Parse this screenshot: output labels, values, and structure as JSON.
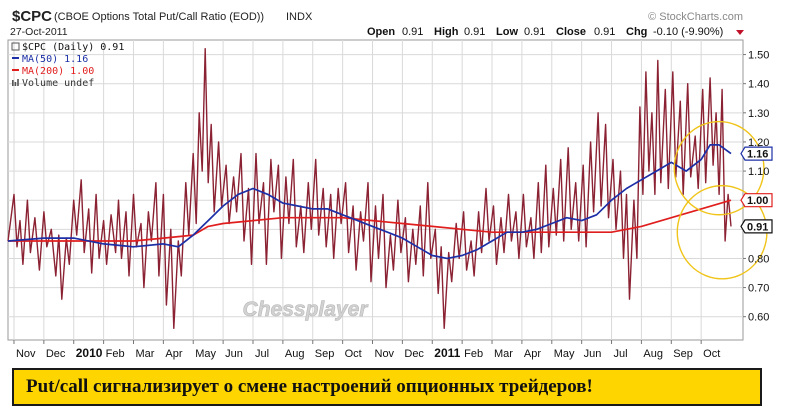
{
  "header": {
    "symbol": "$CPC",
    "description": "(CBOE Options Total Put/Call Ratio (EOD))",
    "exchange": "INDX",
    "date": "27-Oct-2011",
    "brand": "© StockCharts.com",
    "ohlc": {
      "open_label": "Open",
      "open": "0.91",
      "high_label": "High",
      "high": "0.91",
      "low_label": "Low",
      "low": "0.91",
      "close_label": "Close",
      "close": "0.91",
      "chg_label": "Chg",
      "chg": "-0.10 (-9.90%)"
    }
  },
  "legend": {
    "price": "$CPC (Daily) 0.91",
    "ma50": "MA(50) 1.16",
    "ma200": "MA(200) 1.00",
    "volume": "Volume undef"
  },
  "colors": {
    "price": "#8b2233",
    "ma50": "#1c2fa6",
    "ma200": "#e01e1e",
    "grid": "#d9d9d9",
    "circle": "#f0c419",
    "banner": "#ffd500"
  },
  "watermark": "Chessplayer",
  "banner_text": "Put/call сигнализирует о смене настроений опционных трейдеров!",
  "chart_data": {
    "type": "line",
    "x_ticks": [
      {
        "label": "Nov",
        "month": 0
      },
      {
        "label": "Dec",
        "month": 1
      },
      {
        "label": "2010",
        "month": 2,
        "bold": true
      },
      {
        "label": "Feb",
        "month": 3
      },
      {
        "label": "Mar",
        "month": 4
      },
      {
        "label": "Apr",
        "month": 5
      },
      {
        "label": "May",
        "month": 6
      },
      {
        "label": "Jun",
        "month": 7
      },
      {
        "label": "Jul",
        "month": 8
      },
      {
        "label": "Aug",
        "month": 9
      },
      {
        "label": "Sep",
        "month": 10
      },
      {
        "label": "Oct",
        "month": 11
      },
      {
        "label": "Nov",
        "month": 12
      },
      {
        "label": "Dec",
        "month": 13
      },
      {
        "label": "2011",
        "month": 14,
        "bold": true
      },
      {
        "label": "Feb",
        "month": 15
      },
      {
        "label": "Mar",
        "month": 16
      },
      {
        "label": "Apr",
        "month": 17
      },
      {
        "label": "May",
        "month": 18
      },
      {
        "label": "Jun",
        "month": 19
      },
      {
        "label": "Jul",
        "month": 20
      },
      {
        "label": "Aug",
        "month": 21
      },
      {
        "label": "Sep",
        "month": 22
      },
      {
        "label": "Oct",
        "month": 23
      }
    ],
    "y_ticks": [
      0.6,
      0.7,
      0.8,
      0.9,
      1.0,
      1.1,
      1.2,
      1.3,
      1.4,
      1.5
    ],
    "ylim": [
      0.52,
      1.55
    ],
    "xlim": [
      -0.2,
      24.4
    ],
    "price_labels": [
      {
        "text": "1.16",
        "value": 1.16,
        "color": "#1c2fa6"
      },
      {
        "text": "1.00",
        "value": 1.0,
        "color": "#e01e1e"
      },
      {
        "text": "0.91",
        "value": 0.91,
        "color": "#111111"
      }
    ],
    "annotations": [
      {
        "type": "circle",
        "cx": 23.6,
        "cy": 1.11,
        "r_months": 1.5,
        "r_value": 0.16
      },
      {
        "type": "circle",
        "cx": 23.7,
        "cy": 0.89,
        "r_months": 1.5,
        "r_value": 0.16
      }
    ],
    "series": [
      {
        "name": "$CPC (Daily)",
        "role": "price",
        "points": [
          [
            -0.2,
            0.86
          ],
          [
            0.0,
            1.02
          ],
          [
            0.1,
            0.84
          ],
          [
            0.2,
            0.93
          ],
          [
            0.3,
            0.78
          ],
          [
            0.45,
            1.0
          ],
          [
            0.55,
            0.82
          ],
          [
            0.7,
            0.94
          ],
          [
            0.85,
            0.76
          ],
          [
            1.0,
            0.96
          ],
          [
            1.1,
            0.84
          ],
          [
            1.25,
            0.9
          ],
          [
            1.4,
            0.74
          ],
          [
            1.5,
            0.88
          ],
          [
            1.6,
            0.66
          ],
          [
            1.75,
            0.87
          ],
          [
            1.85,
            0.78
          ],
          [
            2.0,
            1.0
          ],
          [
            2.1,
            0.88
          ],
          [
            2.25,
            1.07
          ],
          [
            2.35,
            0.82
          ],
          [
            2.5,
            0.97
          ],
          [
            2.6,
            0.75
          ],
          [
            2.75,
            1.02
          ],
          [
            2.85,
            0.8
          ],
          [
            3.0,
            0.93
          ],
          [
            3.1,
            0.78
          ],
          [
            3.25,
            0.95
          ],
          [
            3.4,
            0.82
          ],
          [
            3.5,
            1.0
          ],
          [
            3.6,
            0.8
          ],
          [
            3.75,
            0.96
          ],
          [
            3.85,
            0.74
          ],
          [
            4.0,
            1.02
          ],
          [
            4.1,
            0.84
          ],
          [
            4.25,
            0.92
          ],
          [
            4.35,
            0.7
          ],
          [
            4.5,
            0.96
          ],
          [
            4.6,
            0.86
          ],
          [
            4.75,
            1.06
          ],
          [
            4.85,
            0.74
          ],
          [
            5.0,
            1.02
          ],
          [
            5.1,
            0.64
          ],
          [
            5.25,
            0.9
          ],
          [
            5.35,
            0.56
          ],
          [
            5.5,
            0.86
          ],
          [
            5.6,
            0.74
          ],
          [
            5.75,
            1.06
          ],
          [
            5.85,
            0.88
          ],
          [
            6.0,
            1.16
          ],
          [
            6.1,
            0.92
          ],
          [
            6.2,
            1.3
          ],
          [
            6.3,
            1.1
          ],
          [
            6.4,
            1.52
          ],
          [
            6.5,
            1.06
          ],
          [
            6.6,
            1.26
          ],
          [
            6.7,
            0.96
          ],
          [
            6.85,
            1.2
          ],
          [
            6.95,
            0.98
          ],
          [
            7.1,
            1.12
          ],
          [
            7.2,
            0.92
          ],
          [
            7.35,
            1.08
          ],
          [
            7.45,
            0.96
          ],
          [
            7.6,
            1.16
          ],
          [
            7.7,
            0.86
          ],
          [
            7.85,
            1.04
          ],
          [
            7.95,
            0.78
          ],
          [
            8.1,
            1.16
          ],
          [
            8.2,
            0.92
          ],
          [
            8.35,
            1.06
          ],
          [
            8.45,
            0.78
          ],
          [
            8.6,
            1.14
          ],
          [
            8.7,
            0.96
          ],
          [
            8.85,
            1.12
          ],
          [
            8.95,
            0.8
          ],
          [
            9.1,
            1.08
          ],
          [
            9.2,
            0.92
          ],
          [
            9.35,
            1.14
          ],
          [
            9.45,
            0.84
          ],
          [
            9.6,
            0.98
          ],
          [
            9.7,
            0.82
          ],
          [
            9.85,
            1.06
          ],
          [
            9.95,
            0.9
          ],
          [
            10.1,
            1.14
          ],
          [
            10.2,
            0.88
          ],
          [
            10.35,
            1.04
          ],
          [
            10.45,
            0.84
          ],
          [
            10.6,
            1.02
          ],
          [
            10.7,
            0.8
          ],
          [
            10.85,
            1.04
          ],
          [
            10.95,
            0.92
          ],
          [
            11.1,
            1.06
          ],
          [
            11.2,
            0.82
          ],
          [
            11.35,
            0.98
          ],
          [
            11.45,
            0.76
          ],
          [
            11.6,
            0.96
          ],
          [
            11.7,
            0.86
          ],
          [
            11.85,
            1.06
          ],
          [
            11.95,
            0.72
          ],
          [
            12.1,
            0.98
          ],
          [
            12.2,
            0.8
          ],
          [
            12.35,
            1.02
          ],
          [
            12.45,
            0.7
          ],
          [
            12.6,
            0.88
          ],
          [
            12.7,
            0.76
          ],
          [
            12.85,
            1.0
          ],
          [
            12.95,
            0.82
          ],
          [
            13.1,
            0.94
          ],
          [
            13.2,
            0.72
          ],
          [
            13.35,
            0.9
          ],
          [
            13.45,
            0.78
          ],
          [
            13.6,
            0.98
          ],
          [
            13.7,
            0.74
          ],
          [
            13.85,
            1.06
          ],
          [
            13.95,
            0.8
          ],
          [
            14.1,
            0.9
          ],
          [
            14.2,
            0.68
          ],
          [
            14.3,
            0.84
          ],
          [
            14.4,
            0.56
          ],
          [
            14.55,
            0.82
          ],
          [
            14.65,
            0.72
          ],
          [
            14.8,
            0.92
          ],
          [
            14.9,
            0.8
          ],
          [
            15.05,
            0.96
          ],
          [
            15.15,
            0.76
          ],
          [
            15.3,
            0.86
          ],
          [
            15.4,
            0.74
          ],
          [
            15.55,
            0.96
          ],
          [
            15.65,
            0.82
          ],
          [
            15.8,
            1.04
          ],
          [
            15.9,
            0.86
          ],
          [
            16.05,
            0.98
          ],
          [
            16.15,
            0.78
          ],
          [
            16.3,
            0.94
          ],
          [
            16.4,
            0.82
          ],
          [
            16.55,
            1.02
          ],
          [
            16.65,
            0.86
          ],
          [
            16.8,
            0.96
          ],
          [
            16.9,
            0.8
          ],
          [
            17.05,
            1.02
          ],
          [
            17.15,
            0.84
          ],
          [
            17.3,
            0.94
          ],
          [
            17.4,
            0.8
          ],
          [
            17.55,
            1.06
          ],
          [
            17.65,
            0.82
          ],
          [
            17.8,
            1.12
          ],
          [
            17.9,
            0.84
          ],
          [
            18.05,
            1.04
          ],
          [
            18.15,
            0.88
          ],
          [
            18.3,
            1.14
          ],
          [
            18.4,
            0.86
          ],
          [
            18.55,
            1.18
          ],
          [
            18.65,
            0.9
          ],
          [
            18.8,
            1.06
          ],
          [
            18.9,
            0.86
          ],
          [
            19.05,
            1.12
          ],
          [
            19.15,
            0.84
          ],
          [
            19.3,
            1.2
          ],
          [
            19.4,
            0.96
          ],
          [
            19.55,
            1.3
          ],
          [
            19.65,
            0.98
          ],
          [
            19.8,
            1.26
          ],
          [
            19.9,
            0.94
          ],
          [
            20.05,
            1.14
          ],
          [
            20.15,
            0.9
          ],
          [
            20.3,
            1.1
          ],
          [
            20.4,
            0.8
          ],
          [
            20.5,
            1.02
          ],
          [
            20.6,
            0.66
          ],
          [
            20.75,
            1.0
          ],
          [
            20.85,
            0.8
          ],
          [
            20.95,
            1.32
          ],
          [
            21.05,
            1.02
          ],
          [
            21.15,
            1.44
          ],
          [
            21.25,
            1.1
          ],
          [
            21.35,
            1.3
          ],
          [
            21.45,
            1.02
          ],
          [
            21.55,
            1.48
          ],
          [
            21.65,
            1.06
          ],
          [
            21.8,
            1.38
          ],
          [
            21.9,
            1.04
          ],
          [
            22.05,
            1.44
          ],
          [
            22.15,
            1.08
          ],
          [
            22.3,
            1.34
          ],
          [
            22.4,
            1.02
          ],
          [
            22.55,
            1.4
          ],
          [
            22.65,
            1.08
          ],
          [
            22.8,
            1.22
          ],
          [
            22.9,
            1.04
          ],
          [
            23.05,
            1.38
          ],
          [
            23.15,
            1.06
          ],
          [
            23.3,
            1.42
          ],
          [
            23.4,
            1.12
          ],
          [
            23.5,
            1.3
          ],
          [
            23.6,
            1.02
          ],
          [
            23.7,
            1.38
          ],
          [
            23.8,
            0.86
          ],
          [
            23.9,
            1.02
          ],
          [
            24.0,
            0.91
          ]
        ]
      },
      {
        "name": "MA(50)",
        "role": "ma50",
        "points": [
          [
            -0.2,
            0.86
          ],
          [
            1.0,
            0.87
          ],
          [
            2.0,
            0.87
          ],
          [
            3.0,
            0.85
          ],
          [
            4.0,
            0.84
          ],
          [
            5.0,
            0.85
          ],
          [
            5.5,
            0.84
          ],
          [
            6.0,
            0.88
          ],
          [
            6.5,
            0.93
          ],
          [
            7.0,
            0.98
          ],
          [
            7.5,
            1.02
          ],
          [
            8.0,
            1.04
          ],
          [
            8.5,
            1.02
          ],
          [
            9.0,
            0.99
          ],
          [
            9.5,
            0.98
          ],
          [
            10.0,
            0.97
          ],
          [
            10.5,
            0.97
          ],
          [
            11.0,
            0.95
          ],
          [
            11.5,
            0.93
          ],
          [
            12.0,
            0.91
          ],
          [
            12.5,
            0.89
          ],
          [
            13.0,
            0.87
          ],
          [
            13.5,
            0.84
          ],
          [
            14.0,
            0.81
          ],
          [
            14.5,
            0.8
          ],
          [
            15.0,
            0.81
          ],
          [
            15.5,
            0.83
          ],
          [
            16.0,
            0.86
          ],
          [
            16.5,
            0.89
          ],
          [
            17.0,
            0.89
          ],
          [
            17.5,
            0.9
          ],
          [
            18.0,
            0.92
          ],
          [
            18.5,
            0.94
          ],
          [
            19.0,
            0.93
          ],
          [
            19.5,
            0.95
          ],
          [
            20.0,
            1.0
          ],
          [
            20.5,
            1.04
          ],
          [
            21.0,
            1.07
          ],
          [
            21.5,
            1.1
          ],
          [
            22.0,
            1.13
          ],
          [
            22.5,
            1.1
          ],
          [
            23.0,
            1.14
          ],
          [
            23.3,
            1.19
          ],
          [
            23.6,
            1.19
          ],
          [
            24.0,
            1.16
          ]
        ]
      },
      {
        "name": "MA(200)",
        "role": "ma200",
        "points": [
          [
            -0.2,
            0.86
          ],
          [
            1.0,
            0.86
          ],
          [
            2.0,
            0.86
          ],
          [
            3.0,
            0.86
          ],
          [
            4.0,
            0.86
          ],
          [
            5.0,
            0.87
          ],
          [
            6.0,
            0.88
          ],
          [
            6.5,
            0.91
          ],
          [
            7.0,
            0.92
          ],
          [
            8.0,
            0.93
          ],
          [
            9.0,
            0.94
          ],
          [
            10.0,
            0.94
          ],
          [
            11.0,
            0.94
          ],
          [
            12.0,
            0.93
          ],
          [
            13.0,
            0.92
          ],
          [
            14.0,
            0.91
          ],
          [
            15.0,
            0.9
          ],
          [
            16.0,
            0.89
          ],
          [
            17.0,
            0.89
          ],
          [
            18.0,
            0.89
          ],
          [
            19.0,
            0.89
          ],
          [
            20.0,
            0.89
          ],
          [
            21.0,
            0.91
          ],
          [
            22.0,
            0.94
          ],
          [
            23.0,
            0.97
          ],
          [
            24.0,
            1.0
          ]
        ]
      }
    ]
  }
}
